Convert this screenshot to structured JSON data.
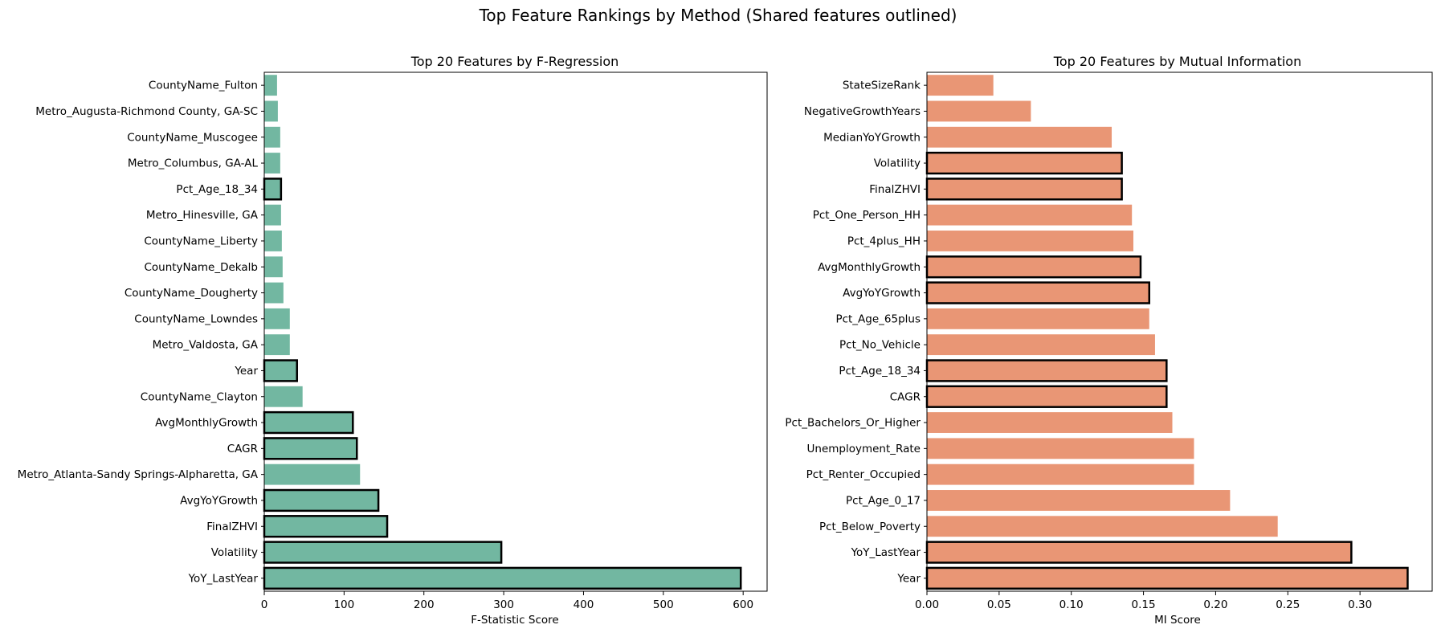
{
  "figure": {
    "suptitle": "Top Feature Rankings by Method (Shared features outlined)"
  },
  "chart_data": [
    {
      "type": "bar",
      "orientation": "horizontal",
      "title": "Top 20 Features by F-Regression",
      "xlabel": "F-Statistic Score",
      "ylabel": "",
      "xlim": [
        0,
        630
      ],
      "xticks": [
        0,
        100,
        200,
        300,
        400,
        500,
        600
      ],
      "xtick_labels": [
        "0",
        "100",
        "200",
        "300",
        "400",
        "500",
        "600"
      ],
      "bar_color": "#72b7a1",
      "outline_color": "#000000",
      "grid": false,
      "categories": [
        "CountyName_Fulton",
        "Metro_Augusta-Richmond County, GA-SC",
        "CountyName_Muscogee",
        "Metro_Columbus, GA-AL",
        "Pct_Age_18_34",
        "Metro_Hinesville, GA",
        "CountyName_Liberty",
        "CountyName_Dekalb",
        "CountyName_Dougherty",
        "CountyName_Lowndes",
        "Metro_Valdosta, GA",
        "Year",
        "CountyName_Clayton",
        "AvgMonthlyGrowth",
        "CAGR",
        "Metro_Atlanta-Sandy Springs-Alpharetta, GA",
        "AvgYoYGrowth",
        "FinalZHVI",
        "Volatility",
        "YoY_LastYear"
      ],
      "values": [
        16,
        17,
        20,
        20,
        21,
        21,
        22,
        23,
        24,
        32,
        32,
        41,
        48,
        111,
        116,
        120,
        143,
        154,
        297,
        597
      ],
      "shared": [
        false,
        false,
        false,
        false,
        true,
        false,
        false,
        false,
        false,
        false,
        false,
        true,
        false,
        true,
        true,
        false,
        true,
        true,
        true,
        true
      ]
    },
    {
      "type": "bar",
      "orientation": "horizontal",
      "title": "Top 20 Features by Mutual Information",
      "xlabel": "MI Score",
      "ylabel": "",
      "xlim": [
        0,
        0.35
      ],
      "xticks": [
        0.0,
        0.05,
        0.1,
        0.15,
        0.2,
        0.25,
        0.3
      ],
      "xtick_labels": [
        "0.00",
        "0.05",
        "0.10",
        "0.15",
        "0.20",
        "0.25",
        "0.30"
      ],
      "bar_color": "#e99675",
      "outline_color": "#000000",
      "grid": false,
      "categories": [
        "StateSizeRank",
        "NegativeGrowthYears",
        "MedianYoYGrowth",
        "Volatility",
        "FinalZHVI",
        "Pct_One_Person_HH",
        "Pct_4plus_HH",
        "AvgMonthlyGrowth",
        "AvgYoYGrowth",
        "Pct_Age_65plus",
        "Pct_No_Vehicle",
        "Pct_Age_18_34",
        "CAGR",
        "Pct_Bachelors_Or_Higher",
        "Unemployment_Rate",
        "Pct_Renter_Occupied",
        "Pct_Age_0_17",
        "Pct_Below_Poverty",
        "YoY_LastYear",
        "Year"
      ],
      "values": [
        0.046,
        0.072,
        0.128,
        0.135,
        0.135,
        0.142,
        0.143,
        0.148,
        0.154,
        0.154,
        0.158,
        0.166,
        0.166,
        0.17,
        0.185,
        0.185,
        0.21,
        0.243,
        0.294,
        0.333
      ],
      "shared": [
        false,
        false,
        false,
        true,
        true,
        false,
        false,
        true,
        true,
        false,
        false,
        true,
        true,
        false,
        false,
        false,
        false,
        false,
        true,
        true
      ]
    }
  ]
}
